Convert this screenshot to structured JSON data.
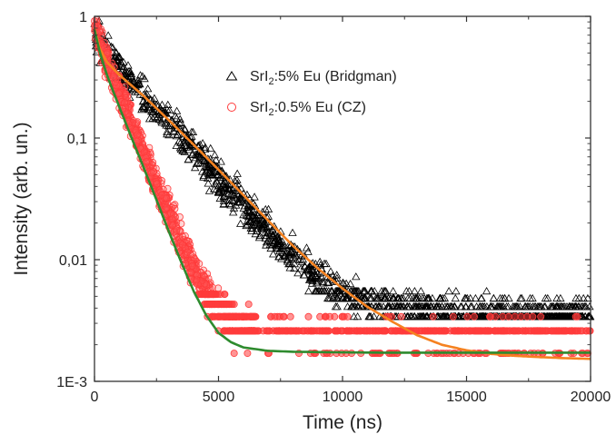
{
  "chart_data": {
    "type": "scatter",
    "xlabel": "Time (ns)",
    "ylabel": "Intensity (arb. un.)",
    "xlim": [
      0,
      20000
    ],
    "ylim": [
      0.001,
      1
    ],
    "yscale": "log",
    "x_ticks": [
      0,
      5000,
      10000,
      15000,
      20000
    ],
    "x_tick_labels": [
      "0",
      "5000",
      "10000",
      "15000",
      "20000"
    ],
    "y_ticks": [
      0.001,
      0.01,
      0.1,
      1
    ],
    "y_tick_labels": [
      "1E-3",
      "0,01",
      "0,1",
      "1"
    ],
    "grid": false,
    "legend_position": "top-right",
    "series": [
      {
        "legend_prefix": "SrI",
        "legend_sub": "2",
        "legend_suffix": ":5% Eu (Bridgman)",
        "marker": "triangle-open",
        "color": "#000000",
        "x": [
          0,
          300,
          600,
          1000,
          1500,
          2000,
          2500,
          3000,
          3500,
          4000,
          4500,
          5000,
          5500,
          6000,
          6500,
          7000,
          7500,
          8000,
          8500,
          9000,
          9500,
          10000,
          11000,
          12000,
          13000,
          14000,
          15000,
          16000,
          17000,
          18000,
          19000,
          20000
        ],
        "y": [
          0.8,
          0.55,
          0.45,
          0.37,
          0.29,
          0.22,
          0.17,
          0.13,
          0.1,
          0.078,
          0.06,
          0.047,
          0.036,
          0.028,
          0.022,
          0.017,
          0.013,
          0.011,
          0.0085,
          0.007,
          0.006,
          0.0053,
          0.0045,
          0.0042,
          0.004,
          0.0038,
          0.0037,
          0.0036,
          0.0035,
          0.0035,
          0.0034,
          0.0034
        ]
      },
      {
        "legend_prefix": "SrI",
        "legend_sub": "2",
        "legend_suffix": ":0.5% Eu (CZ)",
        "marker": "circle-open",
        "color": "#ff3b3b",
        "x": [
          0,
          200,
          500,
          800,
          1000,
          1500,
          2000,
          2500,
          3000,
          3500,
          4000,
          4500,
          5000,
          5500,
          6000,
          7000,
          8000,
          10000,
          12000,
          14000,
          16000,
          18000,
          20000
        ],
        "y": [
          0.9,
          0.62,
          0.42,
          0.3,
          0.24,
          0.13,
          0.075,
          0.043,
          0.024,
          0.014,
          0.0085,
          0.0055,
          0.004,
          0.0032,
          0.0028,
          0.0026,
          0.0025,
          0.0024,
          0.0024,
          0.0024,
          0.0024,
          0.0024,
          0.0024
        ]
      }
    ],
    "fits": [
      {
        "color": "#f58220",
        "x": [
          0,
          200,
          500,
          1000,
          2000,
          3000,
          4000,
          5000,
          6000,
          7000,
          8000,
          9000,
          10000,
          11000,
          12000,
          13000,
          14000,
          15000,
          16000,
          17000,
          18000,
          19000,
          20000
        ],
        "y": [
          0.8,
          0.55,
          0.42,
          0.33,
          0.22,
          0.14,
          0.088,
          0.055,
          0.034,
          0.021,
          0.013,
          0.0085,
          0.0058,
          0.0041,
          0.0031,
          0.0024,
          0.002,
          0.0018,
          0.00168,
          0.00162,
          0.00158,
          0.00155,
          0.00153
        ]
      },
      {
        "color": "#2e8b2e",
        "x": [
          0,
          200,
          500,
          1000,
          1500,
          2000,
          2500,
          3000,
          3500,
          4000,
          4500,
          5000,
          5500,
          6000,
          7000,
          8000,
          10000,
          12000,
          14000,
          16000,
          18000,
          20000
        ],
        "y": [
          0.78,
          0.52,
          0.33,
          0.18,
          0.1,
          0.056,
          0.031,
          0.017,
          0.0095,
          0.0055,
          0.0035,
          0.0025,
          0.0021,
          0.0019,
          0.00178,
          0.00175,
          0.00173,
          0.00172,
          0.00172,
          0.00172,
          0.00172,
          0.00172
        ]
      }
    ]
  }
}
